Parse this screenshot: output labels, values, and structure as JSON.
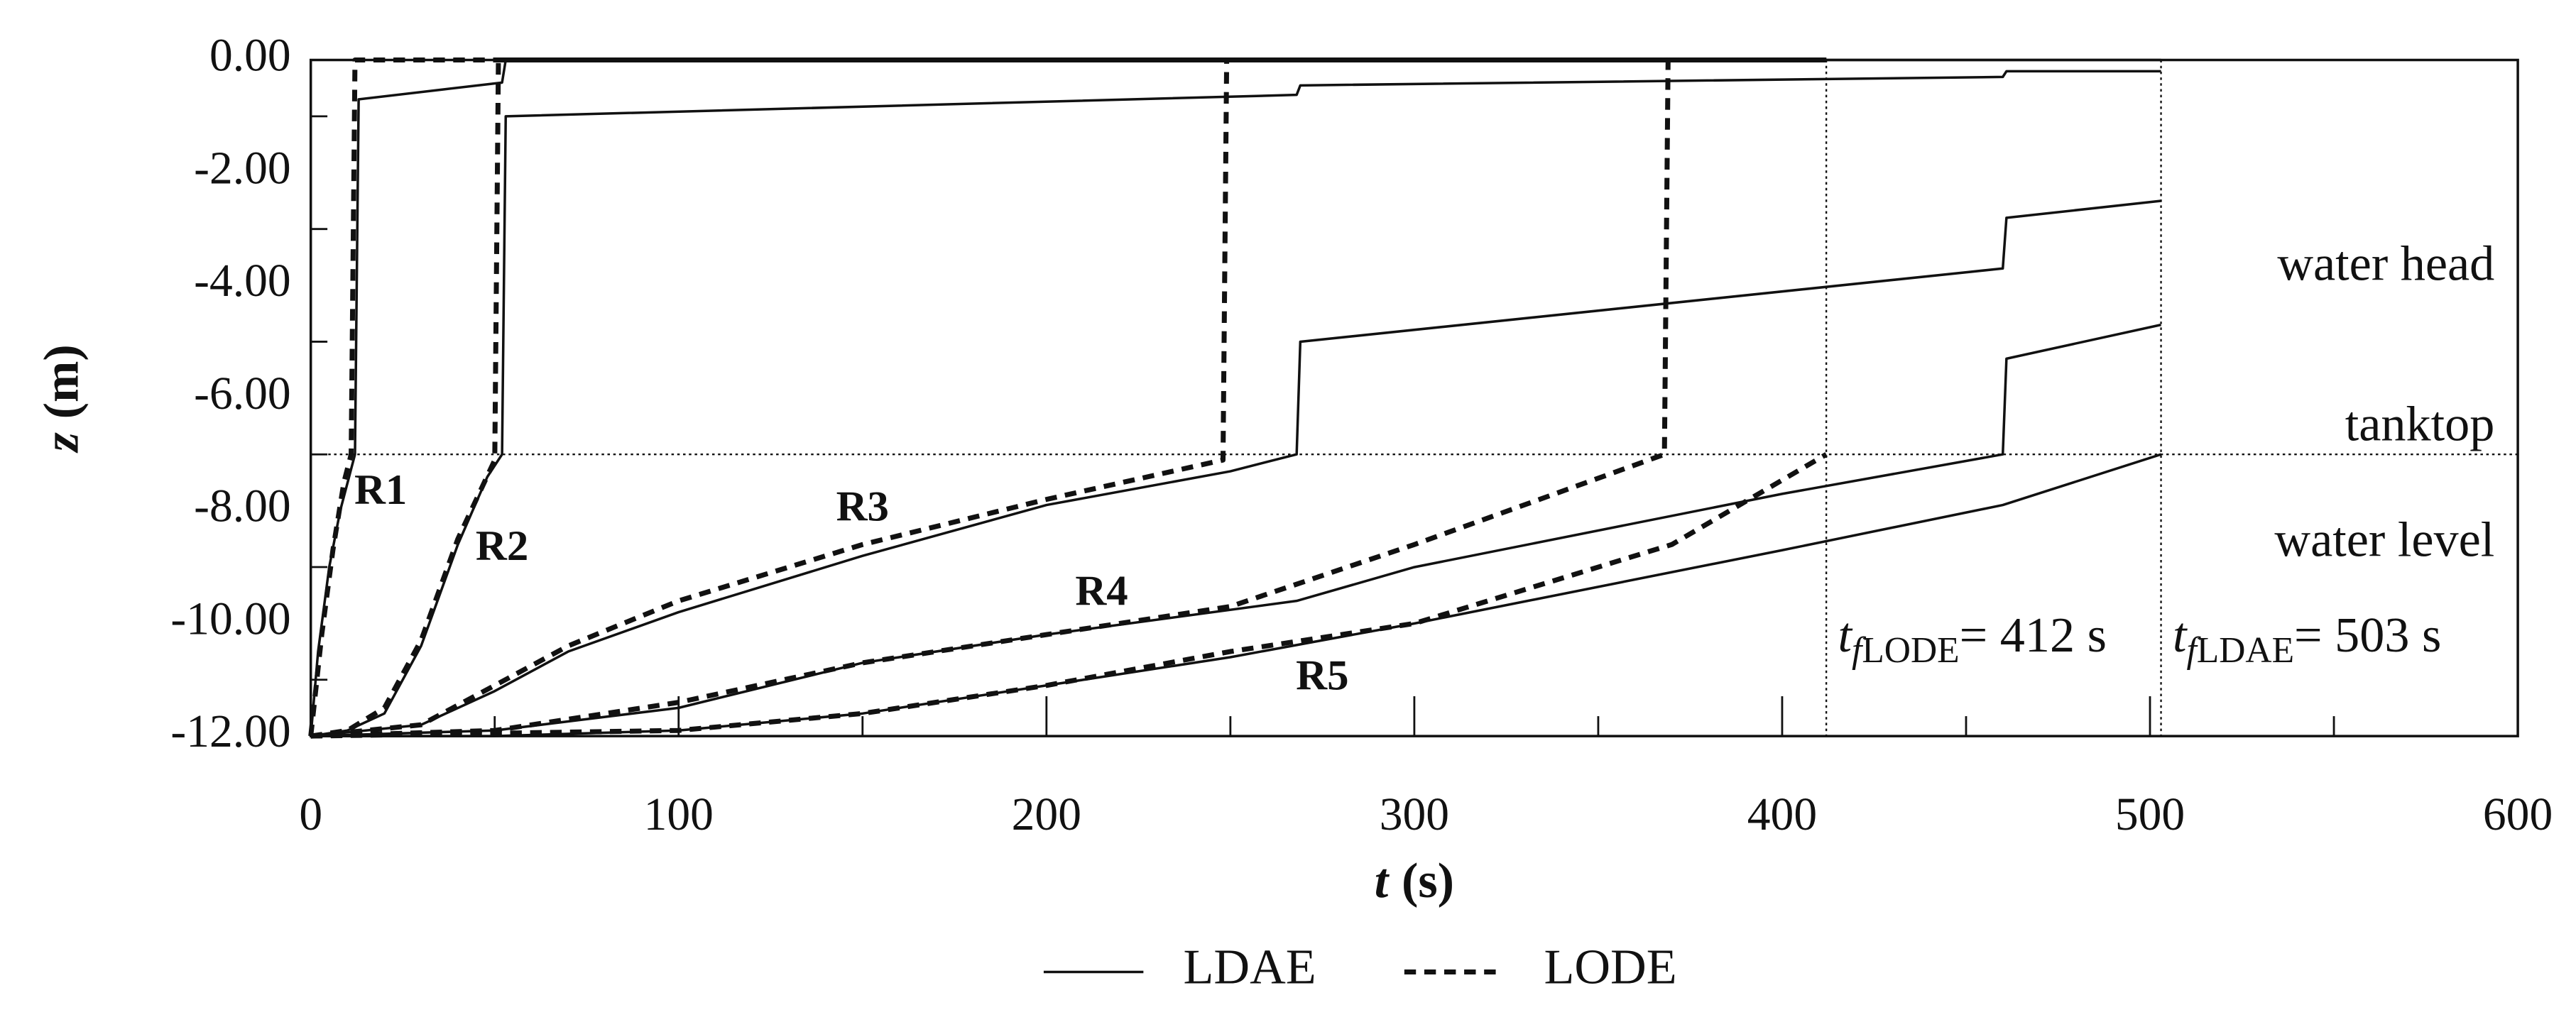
{
  "chart_data": {
    "type": "line",
    "xlabel_symbol": "t",
    "xlabel_unit": "(s)",
    "ylabel_symbol": "z",
    "ylabel_unit": "(m)",
    "xlim": [
      0,
      600
    ],
    "ylim": [
      -12,
      0
    ],
    "xticks": [
      0,
      100,
      200,
      300,
      400,
      500,
      600
    ],
    "xminorticks": [
      50,
      150,
      250,
      350,
      450,
      550
    ],
    "yticks": [
      {
        "value": 0,
        "label": "0.00"
      },
      {
        "value": -2,
        "label": "-2.00"
      },
      {
        "value": -4,
        "label": "-4.00"
      },
      {
        "value": -6,
        "label": "-6.00"
      },
      {
        "value": -8,
        "label": "-8.00"
      },
      {
        "value": -10,
        "label": "-10.00"
      },
      {
        "value": -12,
        "label": "-12.00"
      }
    ],
    "yminorticks": [
      -1,
      -3,
      -5,
      -7,
      -9,
      -11
    ],
    "series": [
      {
        "name": "LDAE",
        "color": "#111111",
        "dashed": false,
        "lines": [
          {
            "x": [
              0,
              2,
              5,
              8,
              12,
              13,
              52,
              53,
              503
            ],
            "values": [
              -12,
              -10.5,
              -9,
              -8,
              -7,
              -0.7,
              -0.4,
              0,
              0
            ]
          },
          {
            "x": [
              0,
              10,
              20,
              30,
              40,
              48,
              52,
              53,
              268,
              269,
              460,
              461,
              503
            ],
            "values": [
              -12,
              -11.9,
              -11.6,
              -10.4,
              -8.6,
              -7.4,
              -7,
              -1,
              -0.62,
              -0.45,
              -0.3,
              -0.2,
              -0.2
            ]
          },
          {
            "x": [
              0,
              30,
              50,
              70,
              100,
              150,
              200,
              250,
              268,
              269,
              460,
              461,
              503
            ],
            "values": [
              -12,
              -11.8,
              -11.2,
              -10.5,
              -9.8,
              -8.8,
              -7.9,
              -7.3,
              -7,
              -5,
              -3.7,
              -2.8,
              -2.5
            ]
          },
          {
            "x": [
              0,
              50,
              100,
              150,
              200,
              268,
              300,
              400,
              460,
              461,
              503
            ],
            "values": [
              -12,
              -11.9,
              -11.5,
              -10.7,
              -10.2,
              -9.6,
              -9,
              -7.7,
              -7,
              -5.3,
              -4.7
            ]
          },
          {
            "x": [
              0,
              50,
              100,
              150,
              200,
              250,
              300,
              400,
              460,
              503
            ],
            "values": [
              -12,
              -12,
              -11.9,
              -11.6,
              -11.1,
              -10.6,
              -10,
              -8.7,
              -7.9,
              -7
            ]
          }
        ]
      },
      {
        "name": "LODE",
        "color": "#111111",
        "dashed": true,
        "lines": [
          {
            "x": [
              0,
              3,
              6,
              9,
              11,
              12,
              412
            ],
            "values": [
              -12,
              -10.2,
              -8.7,
              -7.5,
              -7,
              0,
              0
            ]
          },
          {
            "x": [
              0,
              10,
              20,
              30,
              40,
              50,
              51,
              412
            ],
            "values": [
              -12,
              -11.9,
              -11.5,
              -10.3,
              -8.5,
              -7.1,
              0,
              0
            ]
          },
          {
            "x": [
              0,
              30,
              50,
              70,
              100,
              150,
              200,
              248,
              249,
              412
            ],
            "values": [
              -12,
              -11.8,
              -11.1,
              -10.4,
              -9.6,
              -8.6,
              -7.8,
              -7.1,
              0,
              0
            ]
          },
          {
            "x": [
              0,
              50,
              100,
              150,
              200,
              250,
              300,
              368,
              369,
              412
            ],
            "values": [
              -12,
              -11.9,
              -11.4,
              -10.7,
              -10.2,
              -9.7,
              -8.6,
              -7,
              0,
              0
            ]
          },
          {
            "x": [
              0,
              100,
              150,
              200,
              250,
              300,
              370,
              412
            ],
            "values": [
              -12,
              -11.9,
              -11.6,
              -11.1,
              -10.5,
              -10,
              -8.6,
              -7
            ]
          }
        ]
      }
    ],
    "run_labels": [
      {
        "text": "R1",
        "x": 19,
        "y": -7.7
      },
      {
        "text": "R2",
        "x": 52,
        "y": -8.7
      },
      {
        "text": "R3",
        "x": 150,
        "y": -8.0
      },
      {
        "text": "R4",
        "x": 215,
        "y": -9.5
      },
      {
        "text": "R5",
        "x": 275,
        "y": -11.0
      }
    ],
    "hlines": [
      {
        "value": -7
      }
    ],
    "side_labels": [
      {
        "text": "water head",
        "y": -3.7
      },
      {
        "text": "tanktop",
        "y": -6.55
      },
      {
        "text": "water level",
        "y": -8.6
      }
    ],
    "vlines": [
      {
        "value": 412,
        "symbol": "t",
        "sub": "f",
        "subtext": "LODE",
        "label": "= 412 s"
      },
      {
        "value": 503,
        "symbol": "t",
        "sub": "f",
        "subtext": "LDAE",
        "label": "= 503 s"
      }
    ],
    "vline_label_y": -10.3
  }
}
